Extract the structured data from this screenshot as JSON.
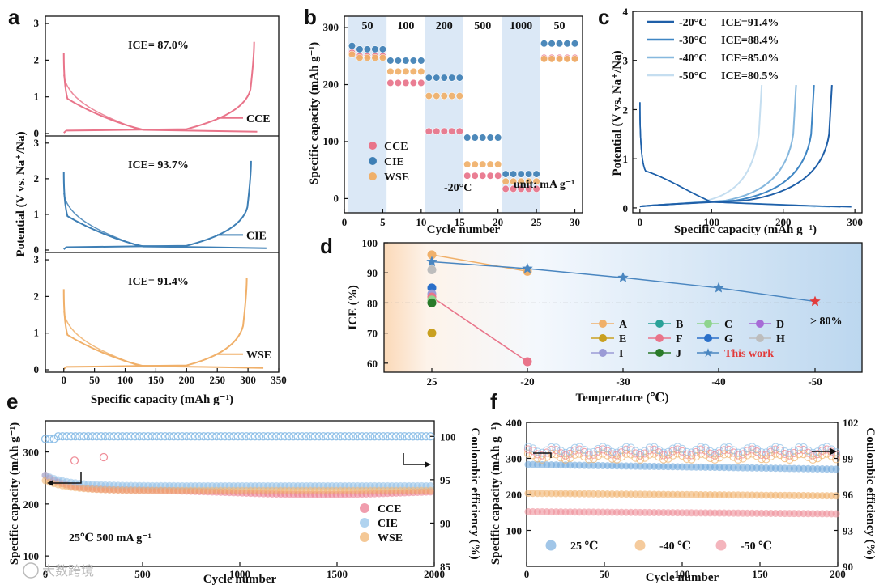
{
  "panels": {
    "a": "a",
    "b": "b",
    "c": "c",
    "d": "d",
    "e": "e",
    "f": "f"
  },
  "watermark": "大数跨境",
  "chart_data": [
    {
      "id": "a",
      "type": "line",
      "xlabel": "Specific capacity (mAh g⁻¹)",
      "ylabel": "Potential (V vs. Na⁺/Na)",
      "xlim": [
        -30,
        350
      ],
      "ylim_each": [
        0,
        3.2
      ],
      "xticks": [
        0,
        50,
        100,
        150,
        200,
        250,
        300,
        350
      ],
      "yticks": [
        0,
        1,
        2,
        3
      ],
      "subplots": [
        {
          "name": "CCE",
          "ice": "ICE= 87.0%",
          "color": "#e9748a",
          "x_end_charge": 310,
          "x_end_discharge": 315
        },
        {
          "name": "CIE",
          "ice": "ICE= 93.7%",
          "color": "#3e7fb5",
          "x_end_charge": 305,
          "x_end_discharge": 330
        },
        {
          "name": "WSE",
          "ice": "ICE= 91.4%",
          "color": "#f0b06a",
          "x_end_charge": 298,
          "x_end_discharge": 325
        }
      ]
    },
    {
      "id": "b",
      "type": "scatter",
      "xlabel": "Cycle number",
      "ylabel": "Specific capacity (mAh g⁻¹)",
      "xlim": [
        0,
        31
      ],
      "ylim": [
        -25,
        320
      ],
      "xticks": [
        0,
        5,
        10,
        15,
        20,
        25,
        30
      ],
      "yticks": [
        0,
        100,
        200,
        300
      ],
      "rate_labels": [
        "50",
        "100",
        "200",
        "500",
        "1000",
        "50"
      ],
      "note_temp": "-20°C",
      "note_unit": "unit: mA g⁻¹",
      "series": [
        {
          "name": "CCE",
          "color": "#e9748a",
          "levels": [
            250,
            203,
            118,
            40,
            17,
            247
          ]
        },
        {
          "name": "CIE",
          "color": "#3e7fb5",
          "levels": [
            262,
            242,
            212,
            107,
            43,
            272
          ]
        },
        {
          "name": "WSE",
          "color": "#f0b06a",
          "levels": [
            247,
            223,
            180,
            60,
            30,
            245
          ]
        }
      ]
    },
    {
      "id": "c",
      "type": "line",
      "xlabel": "Specific capacity (mAh g⁻¹)",
      "ylabel": "Potential (V vs. Na⁺/Na)",
      "xlim": [
        -10,
        310
      ],
      "ylim": [
        -0.1,
        4
      ],
      "xticks": [
        0,
        100,
        200,
        300
      ],
      "yticks": [
        0,
        1,
        2,
        3,
        4
      ],
      "series": [
        {
          "temp": "-20°C",
          "ice": "ICE=91.4%",
          "color": "#1f5fa8",
          "end": 268,
          "dis_end": 295
        },
        {
          "temp": "-30°C",
          "ice": "ICE=88.4%",
          "color": "#3f86c4",
          "end": 243,
          "dis_end": 280
        },
        {
          "temp": "-40°C",
          "ice": "ICE=85.0%",
          "color": "#86b8de",
          "end": 218,
          "dis_end": 265
        },
        {
          "temp": "-50°C",
          "ice": "ICE=80.5%",
          "color": "#c5def0",
          "end": 170,
          "dis_end": 245
        }
      ]
    },
    {
      "id": "d",
      "type": "scatter",
      "xlabel": "Temperature (℃)",
      "ylabel": "ICE (%)",
      "categories": [
        "25",
        "-20",
        "-30",
        "-40",
        "-50"
      ],
      "ylim": [
        57,
        100
      ],
      "yticks": [
        60,
        70,
        80,
        90,
        100
      ],
      "threshold": 80,
      "threshold_label": "> 80%",
      "legend": [
        {
          "key": "A",
          "color": "#f0b06a"
        },
        {
          "key": "B",
          "color": "#2aa198"
        },
        {
          "key": "C",
          "color": "#8ed48e"
        },
        {
          "key": "D",
          "color": "#a66bd6"
        },
        {
          "key": "E",
          "color": "#c9a020"
        },
        {
          "key": "F",
          "color": "#e9748a"
        },
        {
          "key": "G",
          "color": "#2a6fc9"
        },
        {
          "key": "H",
          "color": "#bdbdbd"
        },
        {
          "key": "I",
          "color": "#9b9bd6"
        },
        {
          "key": "J",
          "color": "#2a7a2a"
        },
        {
          "key": "This work",
          "color": "#4a86c0"
        }
      ],
      "points_at_25": [
        {
          "key": "A",
          "value": 96
        },
        {
          "key": "H",
          "value": 91
        },
        {
          "key": "G",
          "value": 85
        },
        {
          "key": "I",
          "value": 83
        },
        {
          "key": "F",
          "value": 82
        },
        {
          "key": "C",
          "value": 81
        },
        {
          "key": "J",
          "value": 80
        },
        {
          "key": "E",
          "value": 70
        }
      ],
      "series_A": [
        96,
        90.5
      ],
      "series_F": [
        82,
        60.5
      ],
      "this_work": [
        93.7,
        91.4,
        88.4,
        85.0,
        80.5
      ]
    },
    {
      "id": "e",
      "type": "scatter",
      "xlabel": "Cycle number",
      "ylabel": "Specific capacity (mAh g⁻¹)",
      "y2label": "Coulombic efficiency (%)",
      "xlim": [
        0,
        2000
      ],
      "ylim": [
        80,
        360
      ],
      "y2lim": [
        85,
        101.8
      ],
      "xticks": [
        0,
        500,
        1000,
        1500,
        2000
      ],
      "yticks": [
        100,
        200,
        300
      ],
      "y2ticks": [
        85,
        90,
        95,
        100
      ],
      "note": "25℃   500 mA g⁻¹",
      "series": [
        {
          "name": "CCE",
          "color": "#e9748a",
          "start": 255,
          "plateau": 222
        },
        {
          "name": "CIE",
          "color": "#8fc0e8",
          "start": 255,
          "plateau": 235
        },
        {
          "name": "WSE",
          "color": "#f0b06a",
          "start": 245,
          "plateau": 226
        }
      ],
      "ce_level": 100
    },
    {
      "id": "f",
      "type": "scatter",
      "xlabel": "Cycle number",
      "ylabel": "Specific capacity (mAh g⁻¹)",
      "y2label": "Coulombic efficiency (%)",
      "xlim": [
        0,
        200
      ],
      "ylim": [
        0,
        400
      ],
      "y2lim": [
        90,
        102
      ],
      "xticks": [
        0,
        50,
        100,
        150,
        200
      ],
      "yticks": [
        100,
        200,
        300,
        400
      ],
      "y2ticks": [
        90,
        93,
        96,
        99,
        102
      ],
      "series": [
        {
          "name": "25 ℃",
          "color": "#6fa8dc",
          "start": 283,
          "end": 270
        },
        {
          "name": "-40 ℃",
          "color": "#f0b06a",
          "start": 203,
          "end": 196
        },
        {
          "name": "-50 ℃",
          "color": "#ef8f9a",
          "start": 152,
          "end": 146
        }
      ],
      "ce_level": 99.5
    }
  ]
}
